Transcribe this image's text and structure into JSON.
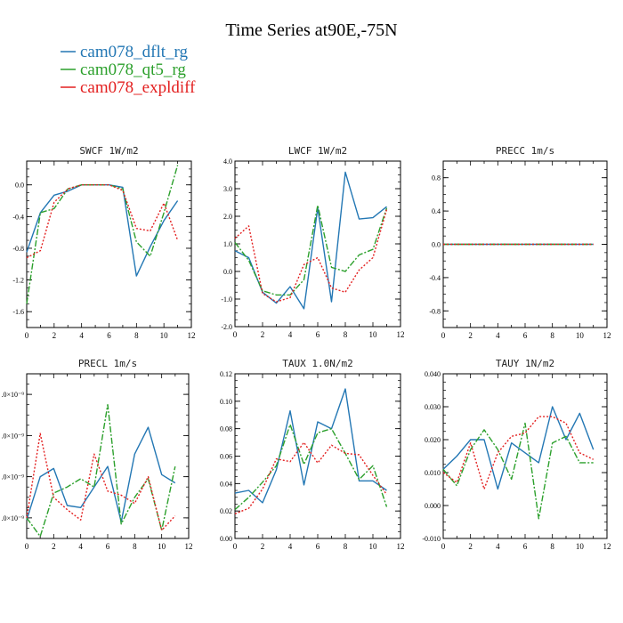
{
  "title": "Time Series at90E,-75N",
  "colors": {
    "blue": "#2377b4",
    "green": "#2ca02c",
    "red": "#e32020"
  },
  "legend": {
    "placement": "top-left",
    "entries": [
      {
        "label": "cam078_dflt_rg",
        "color": "#2377b4",
        "style": "solid"
      },
      {
        "label": "cam078_qt5_rg",
        "color": "#2ca02c",
        "style": "dashdot"
      },
      {
        "label": "cam078_expldiff",
        "color": "#e32020",
        "style": "dotted"
      }
    ]
  },
  "chart_data": [
    {
      "type": "line",
      "title": "SWCF  1W/m2",
      "xlim": [
        0,
        12
      ],
      "xticks": [
        0,
        2,
        4,
        6,
        8,
        10,
        12
      ],
      "ylim": [
        -1.8,
        0.3
      ],
      "yticks": [
        -1.6,
        -1.2,
        -0.8,
        -0.4,
        0.0
      ],
      "yticklabels": [
        "-1.6",
        "-1.2",
        "-0.8",
        "-0.4",
        "0.0"
      ],
      "x": [
        0,
        1,
        2,
        3,
        4,
        5,
        6,
        7,
        8,
        9,
        10,
        11
      ],
      "series": [
        {
          "name": "cam078_dflt_rg",
          "values": [
            -0.85,
            -0.35,
            -0.13,
            -0.08,
            0.0,
            0.0,
            0.0,
            -0.03,
            -1.15,
            -0.78,
            -0.45,
            -0.2
          ]
        },
        {
          "name": "cam078_qt5_rg",
          "values": [
            -1.5,
            -0.35,
            -0.3,
            -0.05,
            0.0,
            0.0,
            0.0,
            -0.05,
            -0.72,
            -0.9,
            -0.35,
            0.25
          ]
        },
        {
          "name": "cam078_expldiff",
          "values": [
            -0.92,
            -0.83,
            -0.22,
            -0.05,
            0.0,
            0.0,
            0.0,
            -0.07,
            -0.55,
            -0.58,
            -0.23,
            -0.7
          ]
        }
      ]
    },
    {
      "type": "line",
      "title": "LWCF  1W/m2",
      "xlim": [
        0,
        12
      ],
      "xticks": [
        0,
        2,
        4,
        6,
        8,
        10,
        12
      ],
      "ylim": [
        -2.0,
        4.0
      ],
      "yticks": [
        -2,
        -1,
        0,
        1,
        2,
        3,
        4
      ],
      "yticklabels": [
        "-2.0",
        "-1.0",
        "0.0",
        "1.0",
        "2.0",
        "3.0",
        "4.0"
      ],
      "x": [
        0,
        1,
        2,
        3,
        4,
        5,
        6,
        7,
        8,
        9,
        10,
        11
      ],
      "series": [
        {
          "name": "cam078_dflt_rg",
          "values": [
            0.75,
            0.5,
            -0.75,
            -1.15,
            -0.55,
            -1.35,
            2.3,
            -1.1,
            3.6,
            1.9,
            1.95,
            2.35
          ]
        },
        {
          "name": "cam078_qt5_rg",
          "values": [
            1.05,
            0.4,
            -0.7,
            -0.85,
            -0.85,
            -0.3,
            2.4,
            0.15,
            0.0,
            0.6,
            0.8,
            2.3
          ]
        },
        {
          "name": "cam078_expldiff",
          "values": [
            1.2,
            1.65,
            -0.8,
            -1.1,
            -0.95,
            0.25,
            0.5,
            -0.6,
            -0.75,
            0.05,
            0.5,
            2.25
          ]
        }
      ]
    },
    {
      "type": "line",
      "title": "PRECC  1m/s",
      "xlim": [
        0,
        12
      ],
      "xticks": [
        0,
        2,
        4,
        6,
        8,
        10,
        12
      ],
      "ylim": [
        -1.0,
        1.0
      ],
      "yticks": [
        -0.8,
        -0.4,
        0.0,
        0.4,
        0.8
      ],
      "yticklabels": [
        "-0.8",
        "-0.4",
        "0.0",
        "0.4",
        "0.8"
      ],
      "x": [
        0,
        1,
        2,
        3,
        4,
        5,
        6,
        7,
        8,
        9,
        10,
        11
      ],
      "series": [
        {
          "name": "cam078_dflt_rg",
          "values": [
            0,
            0,
            0,
            0,
            0,
            0,
            0,
            0,
            0,
            0,
            0,
            0
          ]
        },
        {
          "name": "cam078_qt5_rg",
          "values": [
            0,
            0,
            0,
            0,
            0,
            0,
            0,
            0,
            0,
            0,
            0,
            0
          ]
        },
        {
          "name": "cam078_expldiff",
          "values": [
            0,
            0,
            0,
            0,
            0,
            0,
            0,
            0,
            0,
            0,
            0,
            0
          ]
        }
      ]
    },
    {
      "type": "line",
      "title": "PRECL  1m/s",
      "xlim": [
        0,
        12
      ],
      "xticks": [
        0,
        2,
        4,
        6,
        8,
        10,
        12
      ],
      "ylim": [
        0.5,
        4.5
      ],
      "yticks": [
        1,
        2,
        3,
        4
      ],
      "yticklabels": [
        ".0×10⁻⁹",
        ".0×10⁻⁹",
        ".0×10⁻⁹",
        ".0×10⁻⁹"
      ],
      "x": [
        0,
        1,
        2,
        3,
        4,
        5,
        6,
        7,
        8,
        9,
        10,
        11
      ],
      "series": [
        {
          "name": "cam078_dflt_rg",
          "values": [
            0.95,
            2.0,
            2.2,
            1.3,
            1.25,
            1.75,
            2.25,
            0.9,
            2.55,
            3.2,
            2.05,
            1.85
          ]
        },
        {
          "name": "cam078_qt5_rg",
          "values": [
            1.0,
            0.55,
            1.6,
            1.75,
            1.95,
            1.75,
            3.75,
            0.85,
            1.5,
            1.95,
            0.7,
            2.25
          ]
        },
        {
          "name": "cam078_expldiff",
          "values": [
            1.0,
            3.05,
            1.5,
            1.2,
            0.95,
            2.55,
            1.65,
            1.55,
            1.35,
            2.0,
            0.7,
            1.05
          ]
        }
      ]
    },
    {
      "type": "line",
      "title": "TAUX  1.0N/m2",
      "xlim": [
        0,
        12
      ],
      "xticks": [
        0,
        2,
        4,
        6,
        8,
        10,
        12
      ],
      "ylim": [
        0.0,
        0.12
      ],
      "yticks": [
        0.0,
        0.02,
        0.04,
        0.06,
        0.08,
        0.1,
        0.12
      ],
      "yticklabels": [
        "0.00",
        "0.02",
        "0.04",
        "0.06",
        "0.08",
        "0.10",
        "0.12"
      ],
      "x": [
        0,
        1,
        2,
        3,
        4,
        5,
        6,
        7,
        8,
        9,
        10,
        11
      ],
      "series": [
        {
          "name": "cam078_dflt_rg",
          "values": [
            0.033,
            0.035,
            0.026,
            0.05,
            0.093,
            0.039,
            0.085,
            0.08,
            0.109,
            0.042,
            0.042,
            0.035
          ]
        },
        {
          "name": "cam078_qt5_rg",
          "values": [
            0.021,
            0.03,
            0.041,
            0.053,
            0.083,
            0.054,
            0.077,
            0.08,
            0.062,
            0.043,
            0.053,
            0.023
          ]
        },
        {
          "name": "cam078_expldiff",
          "values": [
            0.018,
            0.022,
            0.036,
            0.058,
            0.056,
            0.07,
            0.055,
            0.068,
            0.062,
            0.061,
            0.046,
            0.032
          ]
        }
      ]
    },
    {
      "type": "line",
      "title": "TAUY  1N/m2",
      "xlim": [
        0,
        12
      ],
      "xticks": [
        0,
        2,
        4,
        6,
        8,
        10,
        12
      ],
      "ylim": [
        -0.01,
        0.04
      ],
      "yticks": [
        -0.01,
        0.0,
        0.01,
        0.02,
        0.03,
        0.04
      ],
      "yticklabels": [
        "-0.010",
        "0.000",
        "0.010",
        "0.020",
        "0.030",
        "0.040"
      ],
      "x": [
        0,
        1,
        2,
        3,
        4,
        5,
        6,
        7,
        8,
        9,
        10,
        11
      ],
      "series": [
        {
          "name": "cam078_dflt_rg",
          "values": [
            0.011,
            0.015,
            0.02,
            0.02,
            0.005,
            0.019,
            0.016,
            0.013,
            0.03,
            0.02,
            0.028,
            0.017
          ]
        },
        {
          "name": "cam078_qt5_rg",
          "values": [
            0.011,
            0.006,
            0.017,
            0.023,
            0.017,
            0.008,
            0.025,
            -0.004,
            0.019,
            0.021,
            0.013,
            0.013
          ]
        },
        {
          "name": "cam078_expldiff",
          "values": [
            0.01,
            0.007,
            0.019,
            0.005,
            0.016,
            0.021,
            0.022,
            0.027,
            0.027,
            0.025,
            0.016,
            0.014
          ]
        }
      ]
    }
  ]
}
